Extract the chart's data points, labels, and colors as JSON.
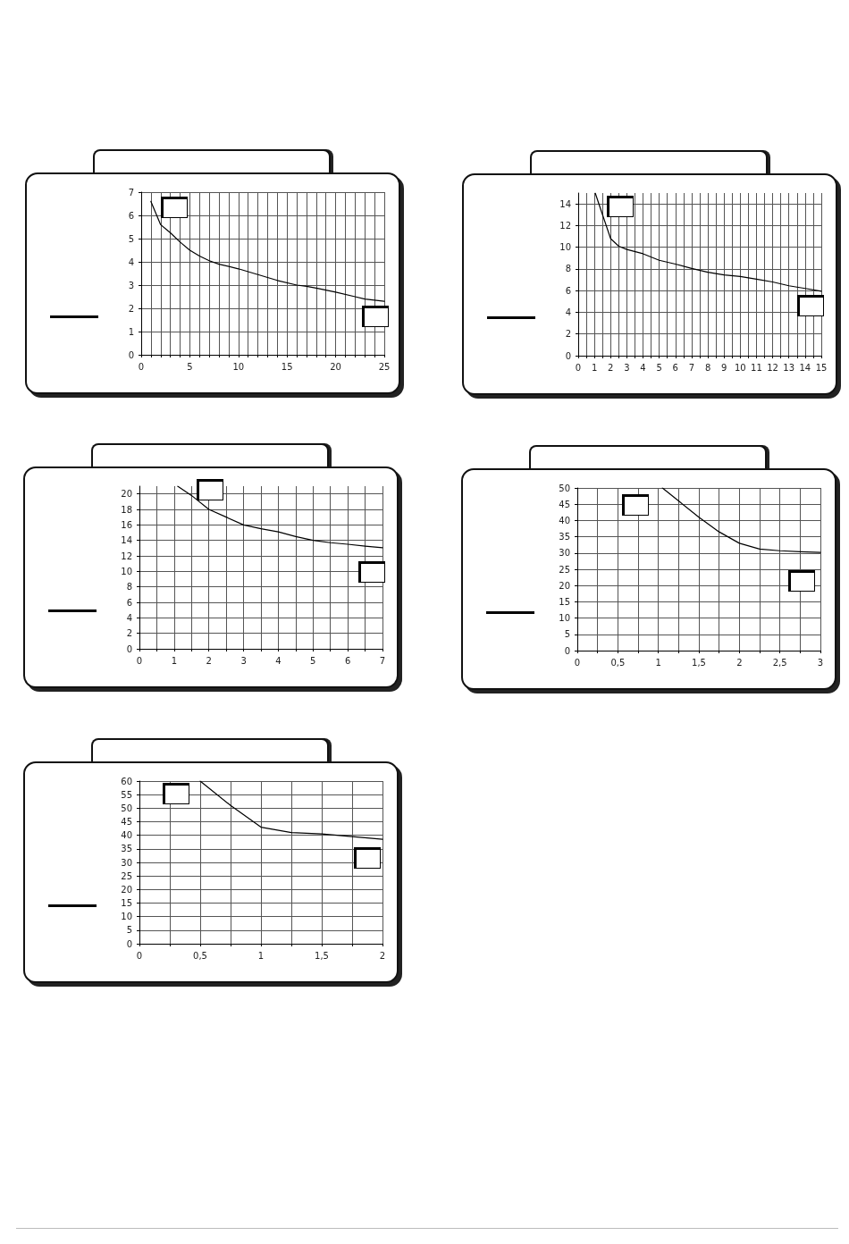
{
  "chart_data": [
    {
      "type": "line",
      "x": [
        1,
        2,
        3,
        4,
        5,
        6,
        7,
        8,
        10,
        12,
        14,
        16,
        17,
        18,
        20,
        22,
        23,
        24,
        25
      ],
      "series": [
        {
          "color": "#000000",
          "values": [
            6.6,
            5.6,
            5.25,
            4.85,
            4.5,
            4.25,
            4.05,
            3.9,
            3.7,
            3.45,
            3.2,
            3.0,
            2.95,
            2.87,
            2.7,
            2.5,
            2.4,
            2.35,
            2.3
          ]
        }
      ],
      "xlim": [
        0,
        25
      ],
      "xticks": [
        0,
        {
          "value": 1,
          "label": null
        },
        {
          "value": 2,
          "label": null
        },
        {
          "value": 3,
          "label": null
        },
        {
          "value": 4,
          "label": null
        },
        5,
        {
          "value": 6,
          "label": null
        },
        {
          "value": 7,
          "label": null
        },
        {
          "value": 8,
          "label": null
        },
        {
          "value": 9,
          "label": null
        },
        10,
        {
          "value": 11,
          "label": null
        },
        {
          "value": 12,
          "label": null
        },
        {
          "value": 13,
          "label": null
        },
        {
          "value": 14,
          "label": null
        },
        15,
        {
          "value": 16,
          "label": null
        },
        {
          "value": 17,
          "label": null
        },
        {
          "value": 18,
          "label": null
        },
        {
          "value": 19,
          "label": null
        },
        20,
        {
          "value": 21,
          "label": null
        },
        {
          "value": 22,
          "label": null
        },
        {
          "value": 23,
          "label": null
        },
        {
          "value": 24,
          "label": null
        },
        25
      ],
      "ylim": [
        0,
        7
      ],
      "yticks": [
        0,
        1,
        2,
        3,
        4,
        5,
        6,
        7
      ],
      "grid": true,
      "marker": "none",
      "line_style": "solid"
    },
    {
      "type": "line",
      "x": [
        1.05,
        1.5,
        2,
        2.5,
        3,
        4,
        5,
        6,
        7,
        8,
        9,
        10,
        11,
        12,
        13,
        14,
        15
      ],
      "series": [
        {
          "color": "#000000",
          "values": [
            15,
            13,
            10.8,
            10.1,
            9.8,
            9.4,
            8.8,
            8.45,
            8.05,
            7.7,
            7.45,
            7.3,
            7.05,
            6.8,
            6.45,
            6.2,
            5.95
          ]
        }
      ],
      "xlim": [
        0,
        15
      ],
      "xticks": [
        0,
        {
          "value": 0.5,
          "label": null
        },
        1,
        {
          "value": 1.5,
          "label": null
        },
        2,
        {
          "value": 2.5,
          "label": null
        },
        3,
        {
          "value": 3.5,
          "label": null
        },
        4,
        {
          "value": 4.5,
          "label": null
        },
        5,
        {
          "value": 5.5,
          "label": null
        },
        6,
        {
          "value": 6.5,
          "label": null
        },
        7,
        {
          "value": 7.5,
          "label": null
        },
        8,
        {
          "value": 8.5,
          "label": null
        },
        9,
        {
          "value": 9.5,
          "label": null
        },
        10,
        {
          "value": 10.5,
          "label": null
        },
        11,
        {
          "value": 11.5,
          "label": null
        },
        12,
        {
          "value": 12.5,
          "label": null
        },
        13,
        {
          "value": 13.5,
          "label": null
        },
        14,
        {
          "value": 14.5,
          "label": null
        },
        15
      ],
      "ylim": [
        0,
        15
      ],
      "yticks": [
        0,
        2,
        4,
        6,
        8,
        10,
        12,
        14
      ],
      "grid": true,
      "marker": "none",
      "line_style": "solid"
    },
    {
      "type": "line",
      "x": [
        1.1,
        1.5,
        2,
        2.5,
        3,
        3.5,
        4,
        4.5,
        5,
        5.5,
        6,
        6.5,
        7
      ],
      "series": [
        {
          "color": "#000000",
          "values": [
            21,
            19.8,
            18,
            17,
            16,
            15.5,
            15.1,
            14.5,
            14,
            13.7,
            13.5,
            13.25,
            13.05
          ]
        }
      ],
      "xlim": [
        0,
        7
      ],
      "xticks": [
        0,
        {
          "value": 0.5,
          "label": null
        },
        1,
        {
          "value": 1.5,
          "label": null
        },
        2,
        {
          "value": 2.5,
          "label": null
        },
        3,
        {
          "value": 3.5,
          "label": null
        },
        4,
        {
          "value": 4.5,
          "label": null
        },
        5,
        {
          "value": 5.5,
          "label": null
        },
        6,
        {
          "value": 6.5,
          "label": null
        },
        7
      ],
      "ylim": [
        0,
        21
      ],
      "yticks": [
        0,
        2,
        4,
        6,
        8,
        10,
        12,
        14,
        16,
        18,
        20
      ],
      "grid": true,
      "marker": "none",
      "line_style": "solid"
    },
    {
      "type": "line",
      "x": [
        1.05,
        1.25,
        1.5,
        1.75,
        2,
        2.25,
        2.5,
        2.75,
        3
      ],
      "series": [
        {
          "color": "#000000",
          "values": [
            50,
            46,
            41,
            36.5,
            33,
            31.2,
            30.7,
            30.4,
            30.2
          ]
        }
      ],
      "xlim": [
        0,
        3
      ],
      "xticks": [
        0,
        {
          "value": 0.25,
          "label": null
        },
        {
          "value": 0.5,
          "label": "0,5"
        },
        {
          "value": 0.75,
          "label": null
        },
        1,
        {
          "value": 1.25,
          "label": null
        },
        {
          "value": 1.5,
          "label": "1,5"
        },
        {
          "value": 1.75,
          "label": null
        },
        2,
        {
          "value": 2.25,
          "label": null
        },
        {
          "value": 2.5,
          "label": "2,5"
        },
        {
          "value": 2.75,
          "label": null
        },
        3
      ],
      "ylim": [
        0,
        50
      ],
      "yticks": [
        0,
        5,
        10,
        15,
        20,
        25,
        30,
        35,
        40,
        45,
        50
      ],
      "grid": true,
      "marker": "none",
      "line_style": "solid"
    },
    {
      "type": "line",
      "x": [
        0.5,
        0.75,
        1,
        1.25,
        1.5,
        1.75,
        2
      ],
      "series": [
        {
          "color": "#000000",
          "values": [
            60,
            51,
            43,
            41,
            40.5,
            39.5,
            38.5
          ]
        }
      ],
      "xlim": [
        0,
        2
      ],
      "xticks": [
        0,
        {
          "value": 0.25,
          "label": null
        },
        {
          "value": 0.5,
          "label": "0,5"
        },
        {
          "value": 0.75,
          "label": null
        },
        1,
        {
          "value": 1.25,
          "label": null
        },
        {
          "value": 1.5,
          "label": "1,5"
        },
        {
          "value": 1.75,
          "label": null
        },
        2
      ],
      "ylim": [
        0,
        60
      ],
      "yticks": [
        0,
        5,
        10,
        15,
        20,
        25,
        30,
        35,
        40,
        45,
        50,
        55,
        60
      ],
      "grid": true,
      "marker": "none",
      "line_style": "solid"
    }
  ]
}
